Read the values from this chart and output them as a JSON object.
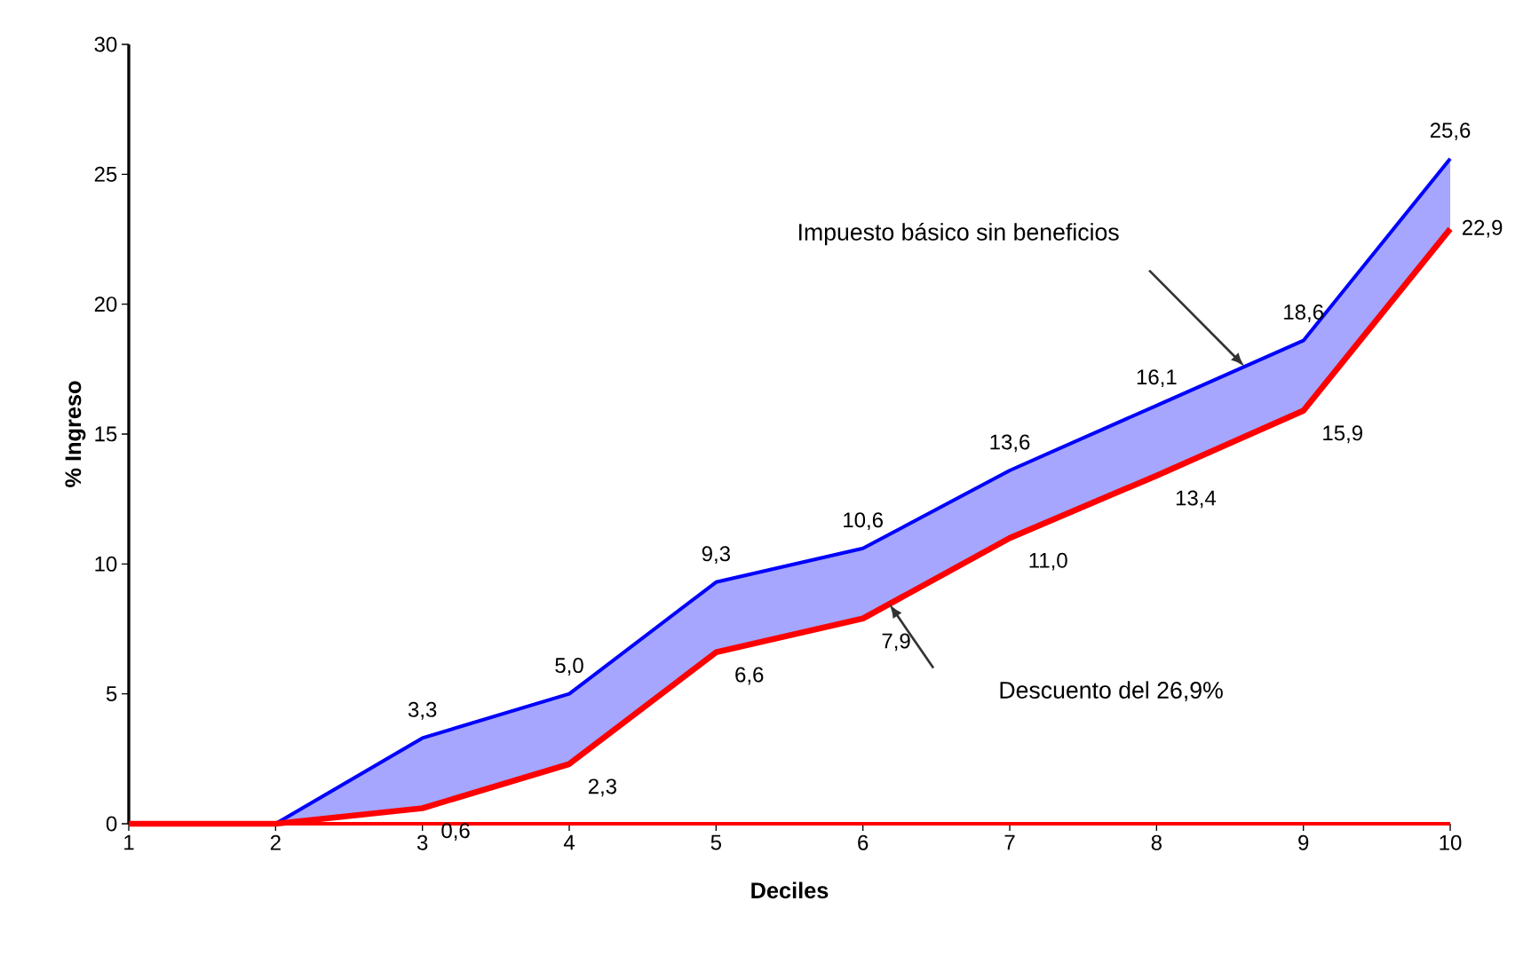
{
  "chart_data": {
    "type": "line",
    "xlabel": "Deciles",
    "ylabel": "% Ingreso",
    "x": [
      1,
      2,
      3,
      4,
      5,
      6,
      7,
      8,
      9,
      10
    ],
    "series": [
      {
        "color": "#0000ff",
        "values": [
          0,
          0,
          3.3,
          5.0,
          9.3,
          10.6,
          13.6,
          16.1,
          18.6,
          25.6
        ],
        "value_labels": [
          null,
          null,
          "3,3",
          "5,0",
          "9,3",
          "10,6",
          "13,6",
          "16,1",
          "18,6",
          "25,6"
        ],
        "lower": [
          0,
          0,
          0.6,
          2.3,
          6.6,
          7.9,
          11.0,
          13.4,
          15.9,
          22.9
        ],
        "upper": [
          0,
          0,
          3.3,
          5.0,
          9.3,
          10.6,
          13.6,
          16.1,
          18.6,
          25.6
        ]
      },
      {
        "color": "#ff0000",
        "values": [
          0,
          0,
          0.6,
          2.3,
          6.6,
          7.9,
          11.0,
          13.4,
          15.9,
          22.9
        ],
        "value_labels": [
          null,
          null,
          "0,6",
          "2,3",
          "6,6",
          "7,9",
          "11,0",
          "13,4",
          "15,9",
          "22,9"
        ]
      }
    ],
    "xlim": [
      1,
      10
    ],
    "xticks": [
      1,
      2,
      3,
      4,
      5,
      6,
      7,
      8,
      9,
      10
    ],
    "ylim": [
      0,
      30
    ],
    "yticks": [
      0,
      5,
      10,
      15,
      20,
      25,
      30
    ],
    "ref_lines": [
      {
        "axis": "y",
        "value": 0,
        "color": "#ff0000"
      }
    ],
    "annotations": [
      "Impuesto básico sin beneficios",
      "Descuento del 26,9%"
    ],
    "grid": false,
    "marker": "none",
    "line_style": "solid"
  }
}
